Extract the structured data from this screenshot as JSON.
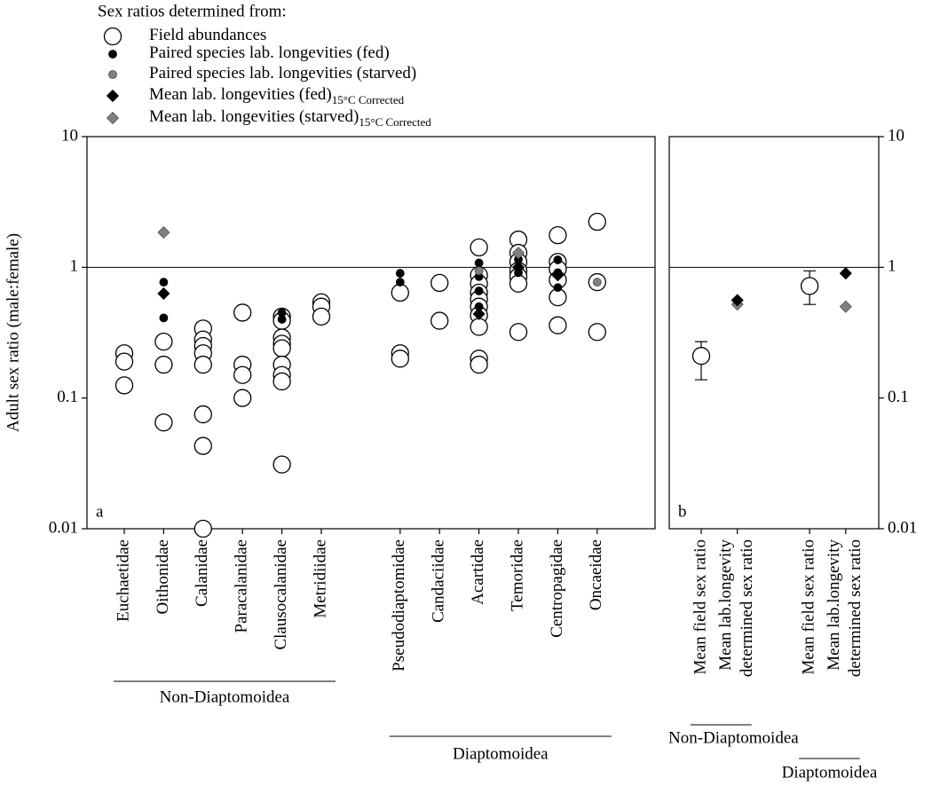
{
  "chart_data": [
    {
      "type": "scatter",
      "panel_label": "a",
      "legend_title": "Sex ratios determined from:",
      "y_label": "Adult sex ratio (male:female)",
      "log_y": true,
      "hline": 1,
      "ylim": [
        0.01,
        10
      ],
      "yticks": [
        0.01,
        0.1,
        1,
        10
      ],
      "categories": [
        "Euchaetidae",
        "Oithonidae",
        "Calanidae",
        "Paracalanidae",
        "Clausocalanidae",
        "Metridiidae",
        null,
        "Pseudodiaptomidae",
        "Candaciidae",
        "Acartidae",
        "Temoridae",
        "Centropagidae",
        "Oncaeidae"
      ],
      "category_groups": [
        "Non-Diaptomoidea",
        "Non-Diaptomoidea",
        "Non-Diaptomoidea",
        "Non-Diaptomoidea",
        "Non-Diaptomoidea",
        "Non-Diaptomoidea",
        null,
        "Diaptomoidea",
        "Diaptomoidea",
        "Diaptomoidea",
        "Diaptomoidea",
        "Diaptomoidea",
        "Diaptomoidea"
      ],
      "series": [
        {
          "name": "Field abundances",
          "marker": "circle",
          "color": "#ffffff",
          "x": [
            "Euchaetidae",
            "Euchaetidae",
            "Euchaetidae",
            "Oithonidae",
            "Oithonidae",
            "Oithonidae",
            "Calanidae",
            "Calanidae",
            "Calanidae",
            "Calanidae",
            "Calanidae",
            "Calanidae",
            "Calanidae",
            "Calanidae",
            "Paracalanidae",
            "Paracalanidae",
            "Paracalanidae",
            "Paracalanidae",
            "Clausocalanidae",
            "Clausocalanidae",
            "Clausocalanidae",
            "Clausocalanidae",
            "Clausocalanidae",
            "Clausocalanidae",
            "Clausocalanidae",
            "Clausocalanidae",
            "Clausocalanidae",
            "Metridiidae",
            "Metridiidae",
            "Metridiidae",
            "Pseudodiaptomidae",
            "Pseudodiaptomidae",
            "Pseudodiaptomidae",
            "Candaciidae",
            "Candaciidae",
            "Acartidae",
            "Acartidae",
            "Acartidae",
            "Acartidae",
            "Acartidae",
            "Acartidae",
            "Acartidae",
            "Acartidae",
            "Acartidae",
            "Acartidae",
            "Temoridae",
            "Temoridae",
            "Temoridae",
            "Temoridae",
            "Temoridae",
            "Temoridae",
            "Temoridae",
            "Centropagidae",
            "Centropagidae",
            "Centropagidae",
            "Centropagidae",
            "Centropagidae",
            "Centropagidae",
            "Oncaeidae",
            "Oncaeidae",
            "Oncaeidae"
          ],
          "values": [
            0.22,
            0.19,
            0.125,
            0.27,
            0.18,
            0.065,
            0.34,
            0.28,
            0.25,
            0.22,
            0.18,
            0.075,
            0.043,
            0.01,
            0.45,
            0.18,
            0.15,
            0.1,
            0.42,
            0.39,
            0.29,
            0.26,
            0.24,
            0.18,
            0.15,
            0.134,
            0.031,
            0.54,
            0.5,
            0.42,
            0.64,
            0.22,
            0.2,
            0.76,
            0.39,
            1.42,
            0.87,
            0.75,
            0.64,
            0.57,
            0.5,
            0.43,
            0.35,
            0.2,
            0.18,
            1.63,
            1.29,
            1.1,
            0.94,
            0.85,
            0.75,
            0.32,
            1.76,
            1.1,
            0.97,
            0.8,
            0.59,
            0.36,
            2.23,
            0.77,
            0.32
          ]
        },
        {
          "name": "Paired species lab. longevities (fed)",
          "marker": "dot",
          "color": "#000000",
          "x": [
            "Oithonidae",
            "Oithonidae",
            "Clausocalanidae",
            "Clausocalanidae",
            "Pseudodiaptomidae",
            "Pseudodiaptomidae",
            "Acartidae",
            "Acartidae",
            "Acartidae",
            "Acartidae",
            "Temoridae",
            "Temoridae",
            "Centropagidae",
            "Centropagidae",
            "Centropagidae"
          ],
          "values": [
            0.77,
            0.41,
            0.45,
            0.4,
            0.9,
            0.77,
            1.08,
            0.85,
            0.66,
            0.5,
            1.15,
            0.91,
            1.14,
            0.91,
            0.7
          ]
        },
        {
          "name": "Paired species lab. longevities (starved)",
          "marker": "dot",
          "color": "#808080",
          "x": [
            "Acartidae",
            "Oncaeidae"
          ],
          "values": [
            0.94,
            0.77
          ]
        },
        {
          "name": "Mean lab. longevities (fed)",
          "subscript": "15°C Corrected",
          "marker": "diamond",
          "color": "#000000",
          "x": [
            "Oithonidae",
            "Acartidae",
            "Temoridae",
            "Centropagidae"
          ],
          "values": [
            0.63,
            0.44,
            1.0,
            0.87
          ]
        },
        {
          "name": "Mean lab. longevities (starved)",
          "subscript": "15°C Corrected",
          "marker": "diamond",
          "color": "#808080",
          "x": [
            "Oithonidae",
            "Temoridae"
          ],
          "values": [
            1.85,
            1.29
          ]
        }
      ]
    },
    {
      "type": "scatter",
      "panel_label": "b",
      "log_y": true,
      "hline": 1,
      "ylim": [
        0.01,
        10
      ],
      "yticks": [
        0.01,
        0.1,
        1,
        10
      ],
      "categories": [
        [
          "Mean field sex ratio"
        ],
        [
          "Mean lab.longevity",
          "determined sex ratio"
        ],
        null,
        [
          "Mean field sex ratio"
        ],
        [
          "Mean lab.longevity",
          "determined sex ratio"
        ]
      ],
      "category_groups": [
        "Non-Diaptomoidea",
        "Non-Diaptomoidea",
        null,
        "Diaptomoidea",
        "Diaptomoidea"
      ],
      "series": [
        {
          "marker": "circle",
          "color": "#ffffff",
          "x": [
            0,
            3
          ],
          "values": [
            0.21,
            0.72
          ],
          "yerr": [
            [
              0.072,
              0.06
            ],
            [
              0.2,
              0.22
            ]
          ]
        },
        {
          "marker": "diamond",
          "color": "#808080",
          "x": [
            1,
            4
          ],
          "values": [
            0.52,
            0.5
          ]
        },
        {
          "marker": "diamond",
          "color": "#000000",
          "x": [
            1,
            4
          ],
          "values": [
            0.56,
            0.9
          ]
        }
      ]
    }
  ]
}
